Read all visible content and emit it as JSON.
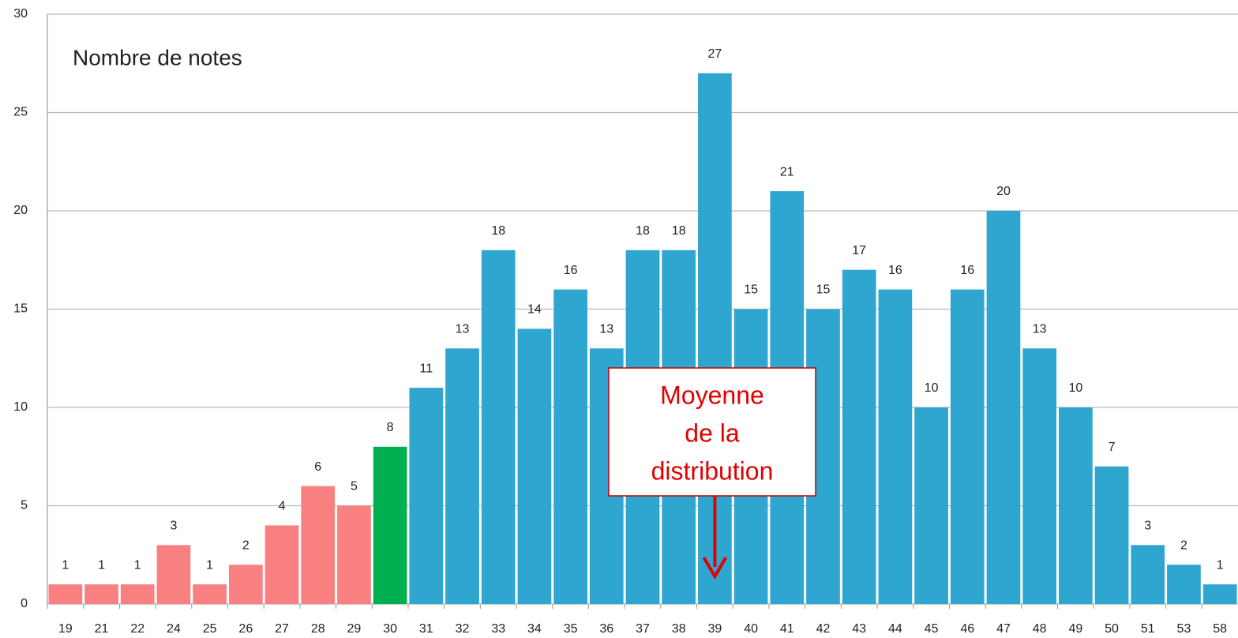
{
  "chart_data": {
    "type": "bar",
    "title": "Nombre de notes",
    "categories": [
      "19",
      "21",
      "22",
      "24",
      "25",
      "26",
      "27",
      "28",
      "29",
      "30",
      "31",
      "32",
      "33",
      "34",
      "35",
      "36",
      "37",
      "38",
      "39",
      "40",
      "41",
      "42",
      "43",
      "44",
      "45",
      "46",
      "47",
      "48",
      "49",
      "50",
      "51",
      "53",
      "58"
    ],
    "values": [
      1,
      1,
      1,
      3,
      1,
      2,
      4,
      6,
      5,
      8,
      11,
      13,
      18,
      14,
      16,
      13,
      18,
      18,
      27,
      15,
      21,
      15,
      17,
      16,
      10,
      16,
      20,
      13,
      10,
      7,
      3,
      2,
      1
    ],
    "colors": [
      "#f98080",
      "#f98080",
      "#f98080",
      "#f98080",
      "#f98080",
      "#f98080",
      "#f98080",
      "#f98080",
      "#f98080",
      "#00b050",
      "#2fa6cf",
      "#2fa6cf",
      "#2fa6cf",
      "#2fa6cf",
      "#2fa6cf",
      "#2fa6cf",
      "#2fa6cf",
      "#2fa6cf",
      "#2fa6cf",
      "#2fa6cf",
      "#2fa6cf",
      "#2fa6cf",
      "#2fa6cf",
      "#2fa6cf",
      "#2fa6cf",
      "#2fa6cf",
      "#2fa6cf",
      "#2fa6cf",
      "#2fa6cf",
      "#2fa6cf",
      "#2fa6cf",
      "#2fa6cf",
      "#2fa6cf"
    ],
    "ylim": [
      0,
      30
    ],
    "yticks": [
      0,
      5,
      10,
      15,
      20,
      25,
      30
    ],
    "grid": true,
    "annotation": [
      "Moyenne",
      "de la",
      "distribution"
    ]
  }
}
